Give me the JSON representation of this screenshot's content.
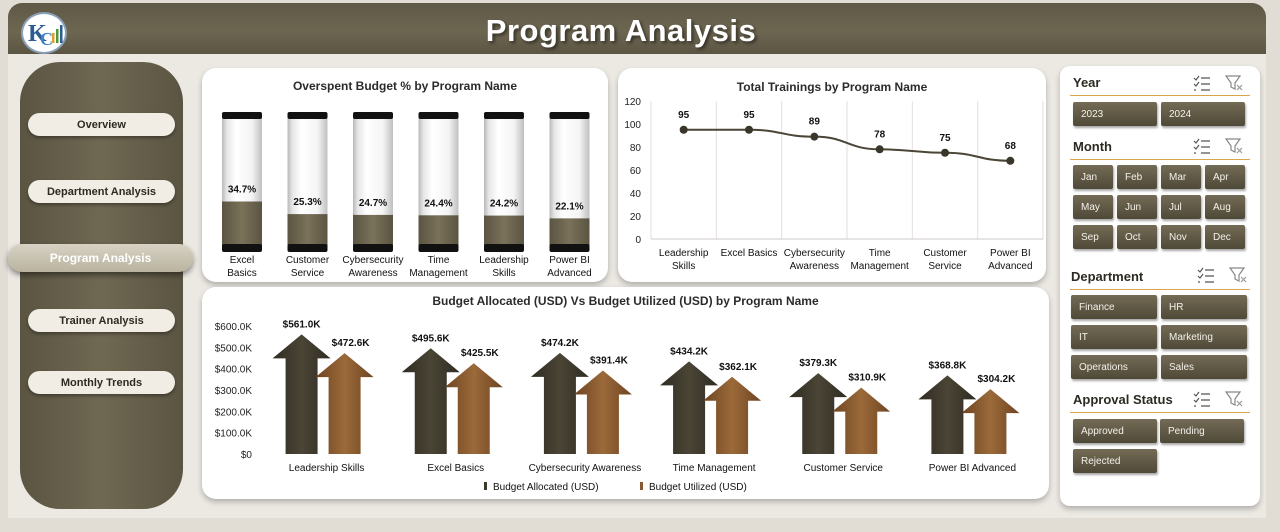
{
  "header": {
    "title": "Program Analysis",
    "logo_icon": "kc-logo-icon"
  },
  "nav": {
    "items": [
      {
        "label": "Overview",
        "active": false
      },
      {
        "label": "Department Analysis",
        "active": false
      },
      {
        "label": "Program Analysis",
        "active": true
      },
      {
        "label": "Trainer Analysis",
        "active": false
      },
      {
        "label": "Monthly Trends",
        "active": false
      }
    ]
  },
  "chart_data": [
    {
      "type": "bar",
      "title": "Overspent Budget % by Program Name",
      "categories": [
        "Excel Basics",
        "Customer Service",
        "Cybersecurity Awareness",
        "Time Management",
        "Leadership Skills",
        "Power BI Advanced"
      ],
      "values": [
        34.7,
        25.3,
        24.7,
        24.4,
        24.2,
        22.1
      ],
      "value_labels": [
        "34.7%",
        "25.3%",
        "24.7%",
        "24.4%",
        "24.2%",
        "22.1%"
      ],
      "ylim": [
        0,
        100
      ],
      "color": "#6e6750"
    },
    {
      "type": "line",
      "title": "Total Trainings by Program Name",
      "categories": [
        "Leadership Skills",
        "Excel Basics",
        "Cybersecurity Awareness",
        "Time Management",
        "Customer Service",
        "Power BI Advanced"
      ],
      "values": [
        95,
        95,
        89,
        78,
        75,
        68
      ],
      "ylim": [
        0,
        120
      ],
      "yticks": [
        0,
        20,
        40,
        60,
        80,
        100,
        120
      ],
      "grid": true,
      "color": "#4a4535"
    },
    {
      "type": "bar",
      "title": "Budget Allocated (USD) Vs Budget Utilized (USD) by Program Name",
      "categories": [
        "Leadership Skills",
        "Excel Basics",
        "Cybersecurity Awareness",
        "Time Management",
        "Customer Service",
        "Power BI Advanced"
      ],
      "series": [
        {
          "name": "Budget Allocated (USD)",
          "values": [
            561.0,
            495.6,
            474.2,
            434.2,
            379.3,
            368.8
          ],
          "labels": [
            "$561.0K",
            "$495.6K",
            "$474.2K",
            "$434.2K",
            "$379.3K",
            "$368.8K"
          ],
          "color": "#3d382c"
        },
        {
          "name": "Budget Utilized (USD)",
          "values": [
            472.6,
            425.5,
            391.4,
            362.1,
            310.9,
            304.2
          ],
          "labels": [
            "$472.6K",
            "$425.5K",
            "$391.4K",
            "$362.1K",
            "$310.9K",
            "$304.2K"
          ],
          "color": "#8a5a2e"
        }
      ],
      "ytick_labels": [
        "$0",
        "$100.0K",
        "$200.0K",
        "$300.0K",
        "$400.0K",
        "$500.0K",
        "$600.0K"
      ],
      "ylim": [
        0,
        600
      ],
      "legend_position": "bottom"
    }
  ],
  "slicers": {
    "year": {
      "title": "Year",
      "options": [
        "2023",
        "2024"
      ]
    },
    "month": {
      "title": "Month",
      "options": [
        "Jan",
        "Feb",
        "Mar",
        "Apr",
        "May",
        "Jun",
        "Jul",
        "Aug",
        "Sep",
        "Oct",
        "Nov",
        "Dec"
      ]
    },
    "department": {
      "title": "Department",
      "options": [
        "Finance",
        "HR",
        "IT",
        "Marketing",
        "Operations",
        "Sales"
      ]
    },
    "approval": {
      "title": "Approval Status",
      "options": [
        "Approved",
        "Pending",
        "Rejected"
      ]
    },
    "icons": {
      "multi_select": "multi-select-icon",
      "clear_filter": "clear-filter-icon"
    }
  },
  "colors": {
    "brand_dark": "#5e5846",
    "accent_gold": "#d6a54c",
    "bar_fill": "#6e6750",
    "allocated": "#3d382c",
    "utilized": "#8a5a2e"
  }
}
